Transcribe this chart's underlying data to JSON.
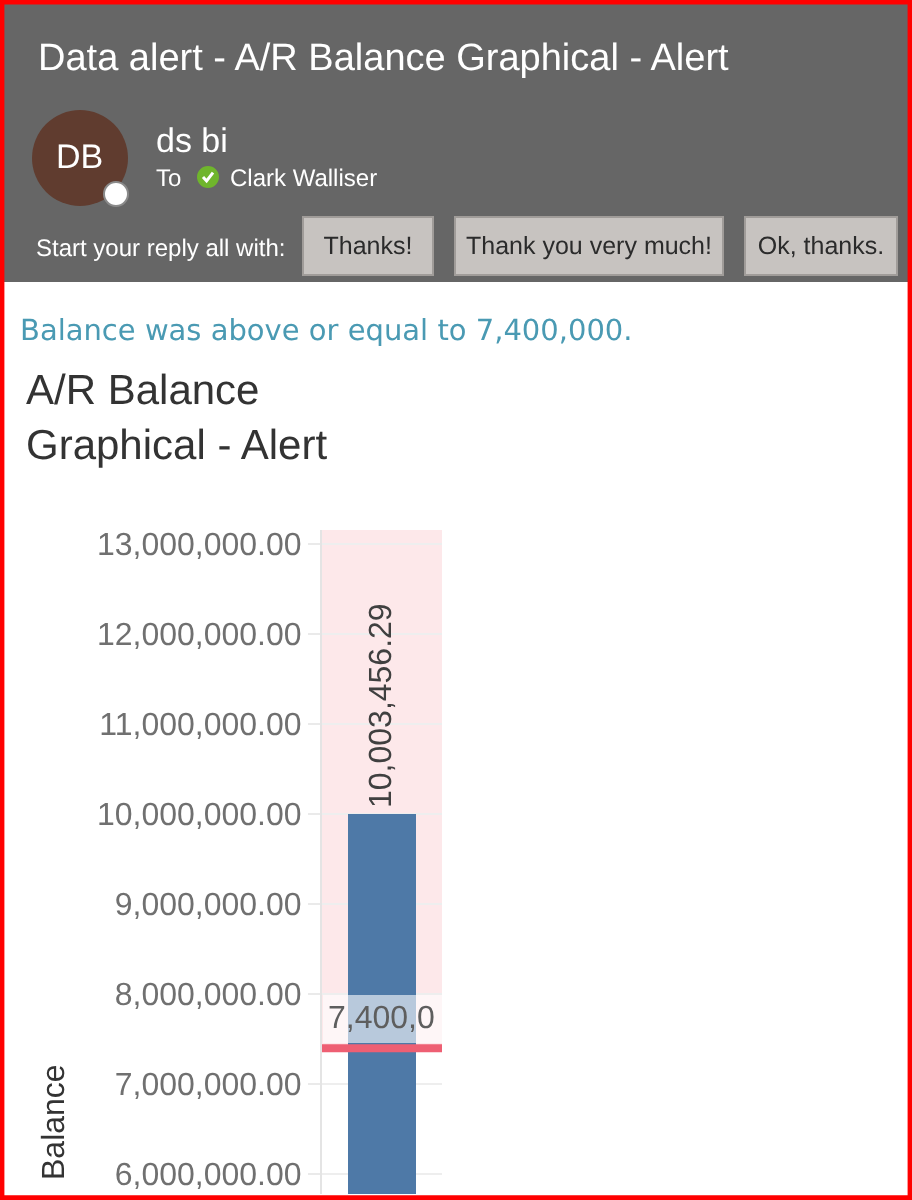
{
  "chart_data": {
    "type": "bar",
    "title": "A/R Balance Graphical - Alert",
    "ylabel": "Balance",
    "categories": [
      null
    ],
    "values": [
      10003456.29
    ],
    "value_labels": [
      "10,003,456.29"
    ],
    "color": "#4e79a7",
    "ylim": [
      5780000,
      13155000
    ],
    "yticks": [
      {
        "value": 6000000,
        "label": "6,000,000.00"
      },
      {
        "value": 7000000,
        "label": "7,000,000.00"
      },
      {
        "value": 8000000,
        "label": "8,000,000.00"
      },
      {
        "value": 9000000,
        "label": "9,000,000.00"
      },
      {
        "value": 10000000,
        "label": "10,000,000.00"
      },
      {
        "value": 11000000,
        "label": "11,000,000.00"
      },
      {
        "value": 12000000,
        "label": "12,000,000.00"
      },
      {
        "value": 13000000,
        "label": "13,000,000.00"
      }
    ],
    "grid": "y",
    "ref_lines": [
      {
        "axis": "y",
        "value": 7400000,
        "label": "7,400,0",
        "color": "#ee5f73"
      }
    ],
    "bands": [
      {
        "axis": "y",
        "from": 7400000,
        "to": 13155000,
        "color": "#fde8ea"
      }
    ],
    "annotations": [
      "Data alert - A/R Balance Graphical - Alert",
      "DB",
      "ds bi",
      "To",
      "Clark Walliser",
      "Start your reply all with:",
      "Thanks!",
      "Thank you very much!",
      "Ok, thanks.",
      "Balance was above or equal to 7,400,000."
    ]
  }
}
